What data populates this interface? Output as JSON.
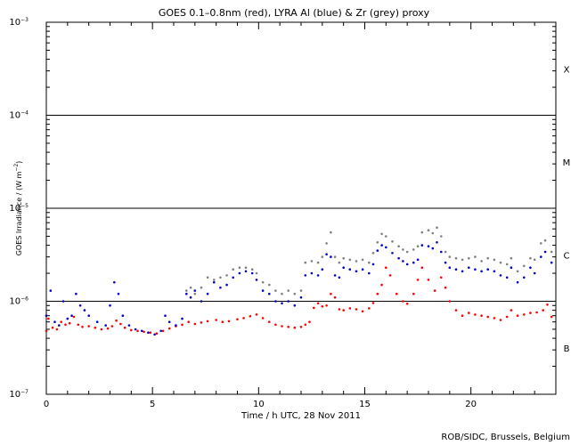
{
  "chart_data": {
    "type": "scatter",
    "title": "GOES 0.1–0.8nm (red), LYRA Al (blue) & Zr (grey) proxy",
    "xlabel": "Time / h UTC, 28 Nov 2011",
    "ylabel_main": "GOES Irradiance / (W m",
    "ylabel_sup": "−2",
    "ylabel_close": ")",
    "xlim": [
      0,
      24
    ],
    "ylim_log10": [
      -7,
      -3
    ],
    "yscale": "log",
    "x_ticks": [
      0,
      5,
      10,
      15,
      20
    ],
    "x_minor_step": 1,
    "y_ticks": [
      {
        "exp": -3,
        "base": "10",
        "sup": "−3"
      },
      {
        "exp": -4,
        "base": "10",
        "sup": "−4"
      },
      {
        "exp": -5,
        "base": "10",
        "sup": "−5"
      },
      {
        "exp": -6,
        "base": "10",
        "sup": "−6"
      },
      {
        "exp": -7,
        "base": "10",
        "sup": "−7"
      }
    ],
    "flare_class_lines": [
      -4,
      -5,
      -6
    ],
    "flare_classes": [
      {
        "label": "X",
        "log10": -3.5
      },
      {
        "label": "M",
        "log10": -4.5
      },
      {
        "label": "C",
        "log10": -5.5
      },
      {
        "label": "B",
        "log10": -6.5
      }
    ],
    "series": [
      {
        "color": "#ff0000",
        "x": [
          0.0,
          0.1,
          0.3,
          0.5,
          0.7,
          0.9,
          1.1,
          1.3,
          1.5,
          1.7,
          2.0,
          2.3,
          2.6,
          2.9,
          3.1,
          3.3,
          3.5,
          3.7,
          4.0,
          4.3,
          4.6,
          4.9,
          5.2,
          5.5,
          5.8,
          6.1,
          6.4,
          6.7,
          7.0,
          7.3,
          7.6,
          8.0,
          8.3,
          8.6,
          9.0,
          9.3,
          9.6,
          9.9,
          10.2,
          10.5,
          10.8,
          11.1,
          11.4,
          11.7,
          12.0,
          12.2,
          12.4,
          12.6,
          12.8,
          13.0,
          13.2,
          13.4,
          13.6,
          13.8,
          14.0,
          14.3,
          14.6,
          14.9,
          15.2,
          15.4,
          15.6,
          15.8,
          16.0,
          16.2,
          16.5,
          16.8,
          17.0,
          17.3,
          17.5,
          17.7,
          18.0,
          18.3,
          18.6,
          18.8,
          19.0,
          19.3,
          19.6,
          19.9,
          20.2,
          20.5,
          20.8,
          21.1,
          21.4,
          21.7,
          21.9,
          22.2,
          22.5,
          22.8,
          23.1,
          23.4,
          23.6,
          23.8
        ],
        "y": [
          4.8e-07,
          6.5e-07,
          5.2e-07,
          5e-07,
          6e-07,
          5.6e-07,
          5.8e-07,
          6.8e-07,
          5.6e-07,
          5.3e-07,
          5.4e-07,
          5.2e-07,
          5e-07,
          5.1e-07,
          5.4e-07,
          6.2e-07,
          5.7e-07,
          5.2e-07,
          4.9e-07,
          4.8e-07,
          4.7e-07,
          4.6e-07,
          4.5e-07,
          4.8e-07,
          5.1e-07,
          5.4e-07,
          5.6e-07,
          6e-07,
          5.7e-07,
          5.9e-07,
          6.1e-07,
          6.3e-07,
          6e-07,
          6.1e-07,
          6.4e-07,
          6.6e-07,
          6.9e-07,
          7.2e-07,
          6.6e-07,
          6e-07,
          5.6e-07,
          5.4e-07,
          5.3e-07,
          5.2e-07,
          5.3e-07,
          5.6e-07,
          6e-07,
          8.5e-07,
          9.5e-07,
          8.8e-07,
          9e-07,
          1.2e-06,
          1.1e-06,
          8.2e-07,
          8e-07,
          8.4e-07,
          8.2e-07,
          7.8e-07,
          8.4e-07,
          9.6e-07,
          1.2e-06,
          1.5e-06,
          2.3e-06,
          1.9e-06,
          1.2e-06,
          1e-06,
          9.4e-07,
          1.2e-06,
          1.7e-06,
          2.3e-06,
          1.7e-06,
          1.3e-06,
          1.8e-06,
          1.4e-06,
          1e-06,
          8e-07,
          7e-07,
          7.5e-07,
          7.2e-07,
          7e-07,
          6.8e-07,
          6.6e-07,
          6.3e-07,
          6.8e-07,
          8e-07,
          7e-07,
          7.2e-07,
          7.5e-07,
          7.6e-07,
          8e-07,
          9.2e-07,
          6.8e-07
        ]
      },
      {
        "color": "#0000cc",
        "x": [
          0.0,
          0.2,
          0.4,
          0.6,
          0.8,
          1.0,
          1.2,
          1.4,
          1.6,
          1.8,
          2.0,
          2.4,
          2.8,
          3.0,
          3.2,
          3.4,
          3.6,
          3.9,
          4.2,
          4.5,
          4.8,
          5.1,
          5.4,
          5.6,
          5.8,
          6.1,
          6.4,
          6.6,
          6.8,
          7.0,
          7.3,
          7.6,
          7.9,
          8.2,
          8.5,
          8.8,
          9.1,
          9.4,
          9.7,
          9.9,
          10.2,
          10.5,
          10.8,
          11.1,
          11.4,
          11.7,
          12.0,
          12.2,
          12.5,
          12.8,
          13.0,
          13.2,
          13.4,
          13.6,
          13.8,
          14.0,
          14.3,
          14.6,
          14.9,
          15.2,
          15.4,
          15.6,
          15.8,
          16.0,
          16.3,
          16.6,
          16.8,
          17.0,
          17.3,
          17.5,
          17.7,
          18.0,
          18.2,
          18.4,
          18.6,
          18.8,
          19.0,
          19.3,
          19.6,
          19.9,
          20.2,
          20.5,
          20.8,
          21.1,
          21.4,
          21.7,
          21.9,
          22.2,
          22.5,
          22.8,
          23.0,
          23.3,
          23.5,
          23.8
        ],
        "y": [
          7e-07,
          1.3e-06,
          6e-07,
          5.5e-07,
          1e-06,
          6.5e-07,
          7e-07,
          1.2e-06,
          9e-07,
          8e-07,
          7e-07,
          6e-07,
          5.5e-07,
          9e-07,
          1.6e-06,
          1.2e-06,
          7e-07,
          5.5e-07,
          5e-07,
          4.8e-07,
          4.6e-07,
          4.4e-07,
          4.8e-07,
          7e-07,
          6e-07,
          5.5e-07,
          6.5e-07,
          1.2e-06,
          1.1e-06,
          1.3e-06,
          1e-06,
          1.2e-06,
          1.6e-06,
          1.4e-06,
          1.5e-06,
          1.8e-06,
          2e-06,
          2.1e-06,
          2e-06,
          1.7e-06,
          1.3e-06,
          1.2e-06,
          1e-06,
          9.5e-07,
          1e-06,
          9e-07,
          1.1e-06,
          1.9e-06,
          2e-06,
          1.9e-06,
          2.2e-06,
          3.2e-06,
          3e-06,
          1.9e-06,
          1.8e-06,
          2.3e-06,
          2.2e-06,
          2.1e-06,
          2.2e-06,
          2e-06,
          2.5e-06,
          3.5e-06,
          4e-06,
          3.8e-06,
          3.3e-06,
          2.9e-06,
          2.7e-06,
          2.5e-06,
          2.6e-06,
          2.8e-06,
          4e-06,
          3.9e-06,
          3.7e-06,
          4.3e-06,
          3.4e-06,
          2.6e-06,
          2.3e-06,
          2.2e-06,
          2.1e-06,
          2.3e-06,
          2.2e-06,
          2.1e-06,
          2.2e-06,
          2.1e-06,
          1.9e-06,
          1.8e-06,
          2.3e-06,
          1.6e-06,
          1.8e-06,
          2.3e-06,
          2e-06,
          3e-06,
          3.4e-06,
          2.6e-06
        ]
      },
      {
        "color": "#808080",
        "x": [
          6.6,
          6.8,
          7.0,
          7.3,
          7.6,
          7.9,
          8.2,
          8.5,
          8.8,
          9.1,
          9.4,
          9.7,
          9.9,
          10.2,
          10.5,
          10.8,
          11.1,
          11.4,
          11.7,
          12.0,
          12.2,
          12.5,
          12.8,
          13.0,
          13.2,
          13.4,
          13.6,
          13.8,
          14.0,
          14.3,
          14.6,
          14.9,
          15.2,
          15.4,
          15.6,
          15.8,
          16.0,
          16.3,
          16.6,
          16.8,
          17.0,
          17.3,
          17.5,
          17.7,
          18.0,
          18.2,
          18.4,
          18.6,
          18.8,
          19.0,
          19.3,
          19.6,
          19.9,
          20.2,
          20.5,
          20.8,
          21.1,
          21.4,
          21.7,
          21.9,
          22.2,
          22.5,
          22.8,
          23.0,
          23.3,
          23.5,
          23.8
        ],
        "y": [
          1.3e-06,
          1.4e-06,
          1.2e-06,
          1.4e-06,
          1.8e-06,
          1.7e-06,
          1.8e-06,
          1.9e-06,
          2.2e-06,
          2.3e-06,
          2.3e-06,
          2.2e-06,
          2e-06,
          1.6e-06,
          1.5e-06,
          1.3e-06,
          1.2e-06,
          1.3e-06,
          1.2e-06,
          1.3e-06,
          2.6e-06,
          2.7e-06,
          2.6e-06,
          3e-06,
          4.2e-06,
          5.5e-06,
          3e-06,
          2.6e-06,
          2.9e-06,
          2.8e-06,
          2.7e-06,
          2.8e-06,
          2.6e-06,
          3.3e-06,
          4.3e-06,
          5.3e-06,
          5e-06,
          4.4e-06,
          3.9e-06,
          3.6e-06,
          3.4e-06,
          3.6e-06,
          3.9e-06,
          5.5e-06,
          5.8e-06,
          5.4e-06,
          6.2e-06,
          5e-06,
          3.4e-06,
          3e-06,
          2.9e-06,
          2.8e-06,
          2.9e-06,
          3e-06,
          2.7e-06,
          2.9e-06,
          2.8e-06,
          2.6e-06,
          2.5e-06,
          2.9e-06,
          2.1e-06,
          2.4e-06,
          2.9e-06,
          2.8e-06,
          4.2e-06,
          4.5e-06,
          3.4e-06
        ]
      }
    ]
  },
  "footer": {
    "credit": "ROB/SIDC, Brussels, Belgium"
  }
}
